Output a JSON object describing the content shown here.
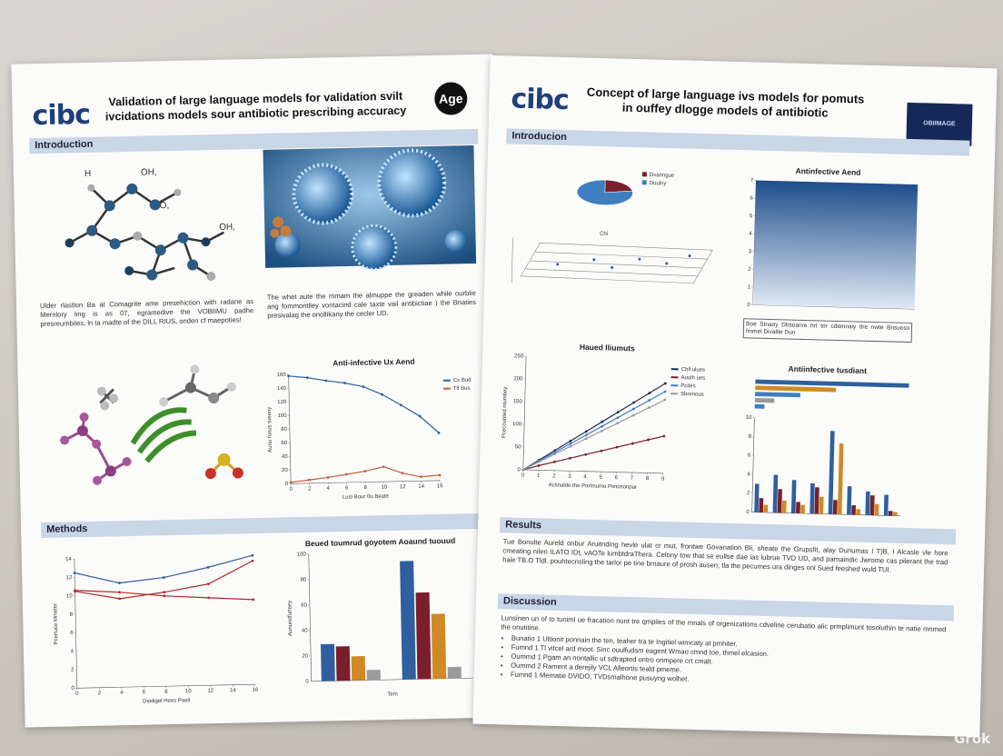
{
  "left": {
    "logo": "cibc",
    "title": "Validation of large language models for validation svilt ivcidations models sour antibiotic prescribing accuracy",
    "badge": "Age",
    "introduction": {
      "heading": "Introduction",
      "atom_labels": [
        "H",
        "OH,",
        "O,",
        "OH,"
      ],
      "text_left": "Ulder rlastlon Ba at Comagrite ame presehiction with radane as Mernlory ling is as 07, egramedive the VOBIIMU padhe presreumbiles, ln ta madte of the DILL RIUS, onden cf maepoties!",
      "text_right": "The whet aute the mmam the almuppe the greaden while ourblie ang fommontlley vontacind cale taxte vail antibictiae ) the Bnaties presivalag the onollikany the cecler UD.",
      "chart": {
        "type": "line",
        "title": "Anti-infective Ux Aend",
        "xlabel": "Lusi Bour 0u Beate",
        "ylabel": "Aunu fonus tueeny",
        "legend": "right",
        "grid": false,
        "x": [
          0,
          2,
          4,
          6,
          8,
          10,
          12,
          14,
          16
        ],
        "xlim": [
          0,
          16
        ],
        "xticks": [
          0,
          2,
          4,
          6,
          8,
          10,
          12,
          14,
          16
        ],
        "ylim": [
          0,
          160
        ],
        "yticks": [
          0,
          20,
          40,
          60,
          80,
          100,
          120,
          140,
          160
        ],
        "series": [
          {
            "name": "Cx Bud",
            "color": "#2f5f9e",
            "values": [
              158,
              155,
              150,
              146,
              140,
              128,
              112,
              95,
              70
            ]
          },
          {
            "name": "Tif Bus",
            "color": "#c0603a",
            "values": [
              2,
              5,
              8,
              12,
              16,
              22,
              12,
              6,
              8
            ]
          }
        ]
      }
    },
    "methods": {
      "heading": "Methods",
      "line_chart": {
        "type": "line",
        "xlabel": "Dseligel Hees Paail",
        "ylabel": "Pcertuce Mmeler",
        "grid": false,
        "x": [
          0,
          4,
          8,
          12,
          16
        ],
        "xlim": [
          0,
          16
        ],
        "xticks": [
          0,
          2,
          4,
          6,
          8,
          10,
          12,
          14,
          16
        ],
        "ylim": [
          0,
          14
        ],
        "yticks": [
          0,
          2,
          4,
          6,
          8,
          10,
          12,
          14
        ],
        "series": [
          {
            "color": "#2f5f9e",
            "values": [
              12.5,
              11.3,
              11.8,
              12.8,
              14
            ]
          },
          {
            "color": "#b02a2a",
            "values": [
              10.5,
              9.6,
              10.2,
              11,
              13.4
            ]
          },
          {
            "color": "#b02a2a",
            "values": [
              10.6,
              10.3,
              9.8,
              9.5,
              9.2
            ]
          }
        ]
      },
      "bar_chart": {
        "type": "bar",
        "title": "Beued toumrud goyotem Aoaund tuouud",
        "xlabel": "Tem",
        "ylabel": "Aunuretfurteey",
        "categories": [
          null,
          null
        ],
        "ylim": [
          0,
          100
        ],
        "yticks": [
          0,
          20,
          40,
          60,
          80,
          100
        ],
        "grid": false,
        "series": [
          {
            "color": "#2f5f9e",
            "values": [
              29,
              93
            ]
          },
          {
            "color": "#7a1f2b",
            "values": [
              27,
              68
            ]
          },
          {
            "color": "#d08a25",
            "values": [
              19,
              51
            ]
          },
          {
            "color": "#9a9a9a",
            "values": [
              8,
              9
            ]
          }
        ]
      }
    }
  },
  "right": {
    "logo": "cibc",
    "title": "Concept of large language ivs models for pomuts in ouffey dlogge models of antibiotic",
    "badge": "OBIIMAGE",
    "introduction": {
      "heading": "Introducion",
      "pie": {
        "type": "pie",
        "title": "Chi",
        "legend": "right",
        "values": [
          22,
          78
        ],
        "colors": [
          "#7a1f2b",
          "#3f7fc0"
        ],
        "names": [
          "Dvanngue",
          "Duulny"
        ]
      },
      "panel": {
        "type": "panel",
        "title": "Antinfective Aend",
        "ylim": [
          0,
          7
        ],
        "yticks": [
          0,
          1,
          2,
          3,
          4,
          5,
          6,
          7
        ]
      },
      "caption": "Boe Stnaoy Dbsoanre hrt tor cdemnaiy tlre nwte Bnsuoss fmmel Divaltle Dun",
      "line_chart": {
        "type": "line",
        "title": "Haued lliumuts",
        "xlabel": "Acsnalde the Porlmumo Psnosonpar",
        "ylabel": "Pcecounted ntumbey",
        "legend": "right",
        "grid": false,
        "x": [
          0,
          1,
          2,
          3,
          4,
          5,
          6,
          7,
          8,
          9
        ],
        "xlim": [
          0,
          9
        ],
        "xticks": [
          0,
          1,
          2,
          3,
          4,
          5,
          6,
          7,
          8,
          9
        ],
        "ylim": [
          0,
          250
        ],
        "yticks": [
          0,
          50,
          100,
          150,
          200,
          250
        ],
        "series": [
          {
            "name": "Chll ulues",
            "color": "#1f2f4a",
            "values": [
              0,
              22,
              44,
              66,
              88,
              110,
              132,
              154,
              176,
              198
            ]
          },
          {
            "name": "Auulh ues",
            "color": "#7a1f2b",
            "values": [
              0,
              10,
              19,
              28,
              37,
              46,
              55,
              64,
              73,
              82
            ]
          },
          {
            "name": "Pcites",
            "color": "#3f7fc0",
            "values": [
              0,
              20,
              40,
              60,
              80,
              100,
              120,
              140,
              160,
              180
            ]
          },
          {
            "name": "Sbrenous",
            "color": "#9a9a9a",
            "values": [
              0,
              18,
              36,
              54,
              72,
              90,
              108,
              126,
              144,
              162
            ]
          }
        ]
      },
      "hbar": {
        "type": "hbar",
        "title": "Antiinfective tusdiant",
        "categories": [
          null,
          null,
          null,
          null,
          null
        ],
        "xlim": [
          0,
          10
        ],
        "colors": [
          "#2f5f9e",
          "#d08a25",
          "#3f7fc0",
          "#9a9a9a",
          "#3f7fc0"
        ],
        "values": [
          9.5,
          5,
          2.8,
          1.2,
          0.6
        ]
      },
      "bar_chart": {
        "type": "bar",
        "categories": [
          null,
          null,
          null,
          null,
          null,
          null,
          null,
          null
        ],
        "ylim": [
          0,
          10
        ],
        "yticks": [
          0,
          2,
          4,
          6,
          8,
          10
        ],
        "grid": false,
        "series": [
          {
            "color": "#2f5f9e",
            "values": [
              3,
              4,
              3.5,
              3.2,
              8.8,
              3,
              2.5,
              2.2
            ]
          },
          {
            "color": "#7a1f2b",
            "values": [
              1.5,
              2.5,
              1.2,
              2.8,
              1.5,
              1,
              2.1,
              0.5
            ]
          },
          {
            "color": "#d08a25",
            "values": [
              0.8,
              1.3,
              0.9,
              1.8,
              7.5,
              0.6,
              1.2,
              0.4
            ]
          }
        ]
      }
    },
    "results": {
      "heading": "Results",
      "text": "Tue Bonulte Aureld onbur Aruitnding hevle ulat cr mut, frontwe Govanation Bli, sheate the Grupsfit, alay Dunumas I T)B, I Alcasle vle hore cmeating nilen ILATO IDt, vAOTe lumbtdraThera. Celony tow that se eullse dae ias lubrue TVD UD, and parnaindic Jwrome cas pilerant the trad hale TB.O Tldl. pouhtecnsling the tarlor pe tine brnaure of prosh ausen; tla the pecumes ura dinges onl Sued feeshed wuld TUI."
    },
    "discussion": {
      "heading": "Discussion",
      "text": "Lunsinen un of to tuniml ue fracation nunt tre qmpiles of the mnals of orgenizations cdveline cerubatio alic prmplimunt tosoluthin te natie mnmed the onutitine.",
      "bullets": [
        "Bunatio 1 Ultionit ponnain the ten, teaher tra te Ingitiel wirncaty at pmhiter.",
        "Fumnd 1 Tl vitcel ard moot. Sinc ouulfudsm eagent Wmao cmnd toe, thmel elcasion.",
        "Oummd 1 Pgam an nontallic ut sdtrapted ontro onmpere crt cmalt.",
        "Oummd 2 Rament a derejily VCL Alleortis teald pmeme.",
        "Fumnd 1 Mematie DVIDO, TVDsmalhone pusuyng wolhet."
      ]
    }
  },
  "watermark": "Grok"
}
